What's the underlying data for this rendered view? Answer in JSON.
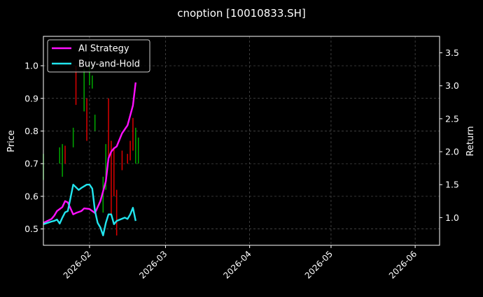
{
  "chart_data": {
    "type": "line",
    "title": "cnoption [10010833.SH]",
    "ylabel": "Price",
    "y2label": "Return",
    "x_start": "2026-01-15",
    "x_end": "2026-06-10",
    "ylim": [
      0.45,
      1.09
    ],
    "y2lim": [
      0.58,
      3.75
    ],
    "xticks": [
      "2026-02",
      "2026-03",
      "2026-04",
      "2026-05",
      "2026-06"
    ],
    "yticks": [
      "0.5",
      "0.6",
      "0.7",
      "0.8",
      "0.9",
      "1.0"
    ],
    "y2ticks": [
      "1.0",
      "1.5",
      "2.0",
      "2.5",
      "3.0",
      "3.5"
    ],
    "grid": true,
    "legend_position": "top-left",
    "colors": {
      "background": "#000000",
      "axes": "#ffffff",
      "grid": "#555555",
      "up": "#00aa00",
      "down": "#dd0000",
      "ai_strategy": "#ff10ff",
      "buy_and_hold": "#22e5ee"
    },
    "candles": [
      {
        "date": "2026-01-15",
        "low": 0.65,
        "high": 0.73,
        "up": true
      },
      {
        "date": "2026-01-21",
        "low": 0.7,
        "high": 0.75,
        "up": true
      },
      {
        "date": "2026-01-22",
        "low": 0.66,
        "high": 0.76,
        "up": true
      },
      {
        "date": "2026-01-23",
        "low": 0.7,
        "high": 0.755,
        "up": false
      },
      {
        "date": "2026-01-26",
        "low": 0.75,
        "high": 0.81,
        "up": true
      },
      {
        "date": "2026-01-27",
        "low": 0.88,
        "high": 1.0,
        "up": false
      },
      {
        "date": "2026-01-30",
        "low": 0.86,
        "high": 0.99,
        "up": true
      },
      {
        "date": "2026-01-31",
        "low": 0.77,
        "high": 0.9,
        "up": false
      },
      {
        "date": "2026-02-01",
        "low": 0.94,
        "high": 1.01,
        "up": true
      },
      {
        "date": "2026-02-02",
        "low": 0.93,
        "high": 0.97,
        "up": true
      },
      {
        "date": "2026-02-03",
        "low": 0.8,
        "high": 0.85,
        "up": true
      },
      {
        "date": "2026-02-06",
        "low": 0.55,
        "high": 0.66,
        "up": true
      },
      {
        "date": "2026-02-07",
        "low": 0.62,
        "high": 0.76,
        "up": true
      },
      {
        "date": "2026-02-08",
        "low": 0.72,
        "high": 0.9,
        "up": false
      },
      {
        "date": "2026-02-09",
        "low": 0.54,
        "high": 0.77,
        "up": false
      },
      {
        "date": "2026-02-10",
        "low": 0.6,
        "high": 0.75,
        "up": false
      },
      {
        "date": "2026-02-11",
        "low": 0.48,
        "high": 0.62,
        "up": false
      },
      {
        "date": "2026-02-13",
        "low": 0.68,
        "high": 0.74,
        "up": false
      },
      {
        "date": "2026-02-15",
        "low": 0.7,
        "high": 0.73,
        "up": false
      },
      {
        "date": "2026-02-16",
        "low": 0.71,
        "high": 0.77,
        "up": false
      },
      {
        "date": "2026-02-17",
        "low": 0.74,
        "high": 0.84,
        "up": false
      },
      {
        "date": "2026-02-18",
        "low": 0.7,
        "high": 0.81,
        "up": true
      },
      {
        "date": "2026-02-19",
        "low": 0.7,
        "high": 0.78,
        "up": true
      }
    ],
    "series": [
      {
        "name": "AI Strategy",
        "x": [
          "2026-01-15",
          "2026-01-18",
          "2026-01-19",
          "2026-01-20",
          "2026-01-21",
          "2026-01-22",
          "2026-01-23",
          "2026-01-24",
          "2026-01-26",
          "2026-01-27",
          "2026-01-29",
          "2026-01-30",
          "2026-02-01",
          "2026-02-03",
          "2026-02-05",
          "2026-02-06",
          "2026-02-07",
          "2026-02-08",
          "2026-02-09",
          "2026-02-10",
          "2026-02-11",
          "2026-02-13",
          "2026-02-15",
          "2026-02-17",
          "2026-02-18"
        ],
        "y": [
          0.92,
          0.98,
          1.03,
          1.1,
          1.13,
          1.16,
          1.25,
          1.23,
          1.05,
          1.07,
          1.1,
          1.14,
          1.13,
          1.07,
          1.25,
          1.4,
          1.55,
          1.9,
          2.0,
          2.05,
          2.08,
          2.28,
          2.4,
          2.7,
          3.05
        ]
      },
      {
        "name": "Buy-and-Hold",
        "x": [
          "2026-01-15",
          "2026-01-18",
          "2026-01-19",
          "2026-01-20",
          "2026-01-21",
          "2026-01-22",
          "2026-01-23",
          "2026-01-24",
          "2026-01-26",
          "2026-01-28",
          "2026-01-29",
          "2026-01-31",
          "2026-02-01",
          "2026-02-02",
          "2026-02-03",
          "2026-02-04",
          "2026-02-05",
          "2026-02-06",
          "2026-02-07",
          "2026-02-08",
          "2026-02-09",
          "2026-02-10",
          "2026-02-11",
          "2026-02-14",
          "2026-02-15",
          "2026-02-16",
          "2026-02-17",
          "2026-02-18"
        ],
        "y": [
          0.9,
          0.94,
          0.95,
          0.97,
          0.91,
          1.0,
          1.08,
          1.1,
          1.5,
          1.42,
          1.45,
          1.5,
          1.5,
          1.44,
          1.1,
          0.92,
          0.85,
          0.73,
          0.92,
          1.05,
          1.05,
          0.9,
          0.95,
          1.0,
          0.98,
          1.05,
          1.15,
          0.95
        ]
      }
    ]
  }
}
